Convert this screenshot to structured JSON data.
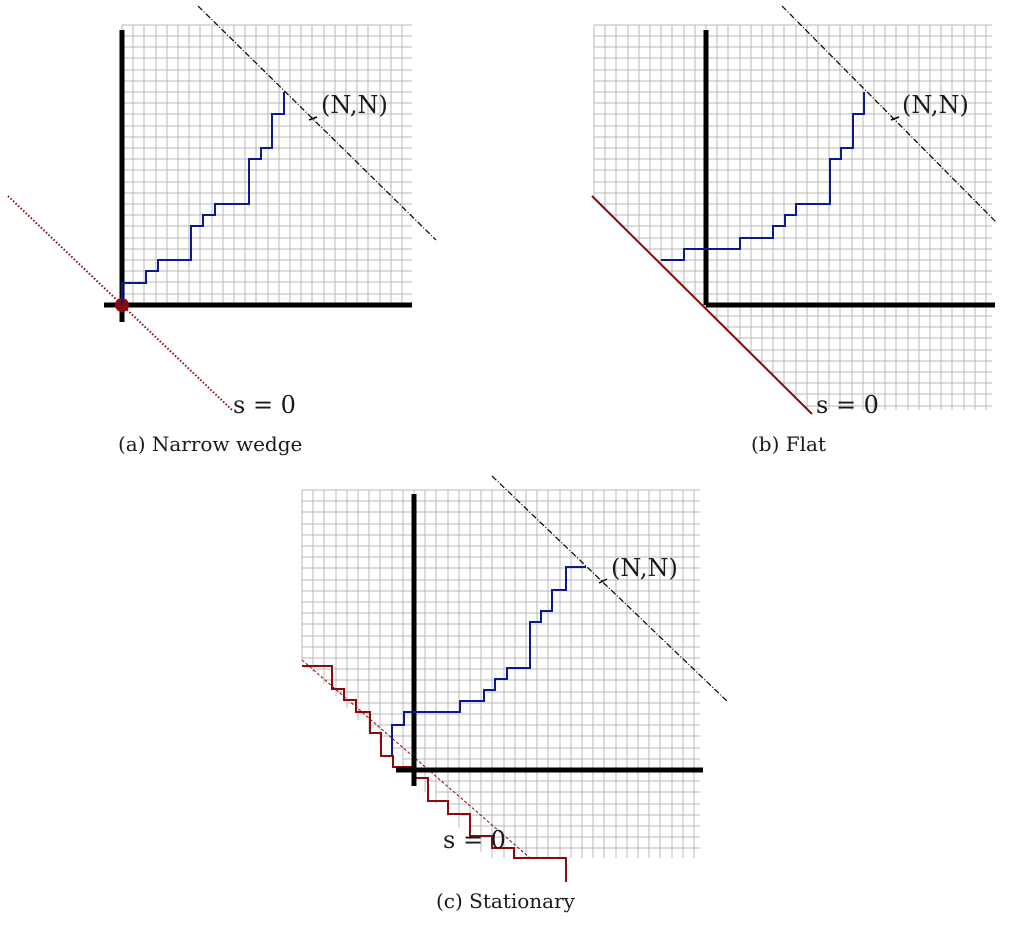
{
  "panels": [
    {
      "id": "a",
      "caption": "(a) Narrow wedge",
      "corner_label": "(N,N)",
      "s_label": "s = 0"
    },
    {
      "id": "b",
      "caption": "(b) Flat",
      "corner_label": "(N,N)",
      "s_label": "s = 0"
    },
    {
      "id": "c",
      "caption": "(c) Stationary",
      "corner_label": "(N,N)",
      "s_label": "s = 0"
    }
  ],
  "colors": {
    "grid": "#b9b9b9",
    "axes": "#000000",
    "path": "#0a1a8c",
    "boundary": "#8b0a0a",
    "diagonal": "#000000"
  }
}
